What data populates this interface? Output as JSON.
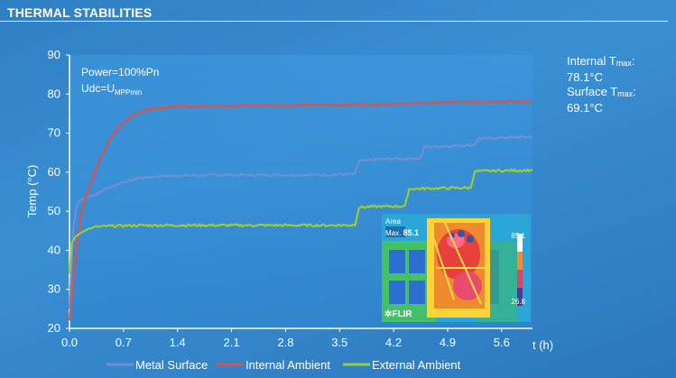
{
  "header": {
    "title": "THERMAL STABILITIES"
  },
  "side_note": {
    "line1_prefix": "Internal T",
    "line1_sub": "max",
    "line1_suffix": ":",
    "line2": "78.1°C",
    "line3_prefix": "Surface T",
    "line3_sub": "max",
    "line3_suffix": ":",
    "line4": "69.1°C"
  },
  "annotation": {
    "line1": "Power=100%Pn",
    "line2_prefix": "Udc=U",
    "line2_sub": "MPPmin"
  },
  "inset": {
    "area_label": "Area",
    "max_label": "Max.",
    "max_value": "85.1",
    "scale_top": "85.1",
    "scale_bottom": "26.8",
    "logo": "FLIR"
  },
  "colors": {
    "metal_surface": "#6f8fd0",
    "internal_ambient": "#d9534f",
    "external_ambient": "#9cc93b",
    "plot_bg_top": "#3f9be0",
    "plot_bg_bottom": "#2f86cf"
  },
  "chart_data": {
    "type": "line",
    "title": "",
    "xlabel": "t (h)",
    "ylabel": "Temp (°C)",
    "xlim": [
      0,
      6
    ],
    "ylim": [
      20,
      90
    ],
    "xticks": [
      "0.0",
      "0.7",
      "1.4",
      "2.1",
      "2.8",
      "3.5",
      "4.2",
      "4.9",
      "5.6"
    ],
    "yticks": [
      "20",
      "30",
      "40",
      "50",
      "60",
      "70",
      "80",
      "90"
    ],
    "grid": false,
    "legend_position": "bottom",
    "series": [
      {
        "name": "Metal Surface",
        "color": "#6f8fd0",
        "x": [
          0.0,
          0.05,
          0.1,
          0.15,
          0.2,
          0.3,
          0.5,
          0.7,
          0.9,
          1.2,
          1.6,
          2.0,
          2.5,
          3.0,
          3.3,
          3.5,
          3.7,
          3.75,
          4.0,
          4.4,
          4.55,
          4.6,
          5.0,
          5.25,
          5.3,
          5.6,
          6.0
        ],
        "y": [
          25,
          46,
          52,
          53,
          53.5,
          54,
          56,
          57.5,
          58.5,
          59,
          59.2,
          59.3,
          59.3,
          59.3,
          59.3,
          59.4,
          59.5,
          62.8,
          63.3,
          63.5,
          63.6,
          66.4,
          66.8,
          67,
          68.6,
          68.8,
          69.1
        ]
      },
      {
        "name": "Internal Ambient",
        "color": "#d9534f",
        "x": [
          0.0,
          0.05,
          0.1,
          0.15,
          0.2,
          0.3,
          0.4,
          0.5,
          0.6,
          0.7,
          0.8,
          0.9,
          1.0,
          1.2,
          1.4,
          1.7,
          2.0,
          2.5,
          3.0,
          3.5,
          4.0,
          4.5,
          5.0,
          5.5,
          6.0
        ],
        "y": [
          22,
          32,
          42,
          49,
          53,
          58.5,
          63.5,
          67.5,
          70.5,
          72.8,
          74.3,
          75.3,
          76,
          76.6,
          76.8,
          76.9,
          77,
          77.1,
          77.2,
          77.2,
          77.4,
          77.6,
          77.9,
          78.1,
          78.1
        ]
      },
      {
        "name": "External Ambient",
        "color": "#9cc93b",
        "x": [
          0.0,
          0.03,
          0.08,
          0.15,
          0.25,
          0.35,
          0.5,
          0.7,
          1.0,
          1.5,
          2.0,
          2.5,
          3.0,
          3.5,
          3.7,
          3.75,
          4.0,
          4.35,
          4.4,
          4.8,
          5.2,
          5.25,
          5.6,
          6.0
        ],
        "y": [
          34,
          42,
          43.5,
          44.5,
          45.5,
          46,
          46.2,
          46.3,
          46.4,
          46.4,
          46.4,
          46.4,
          46.4,
          46.4,
          46.5,
          51,
          51.2,
          51.3,
          55.7,
          55.9,
          56,
          60.2,
          60.4,
          60.5
        ]
      }
    ]
  }
}
